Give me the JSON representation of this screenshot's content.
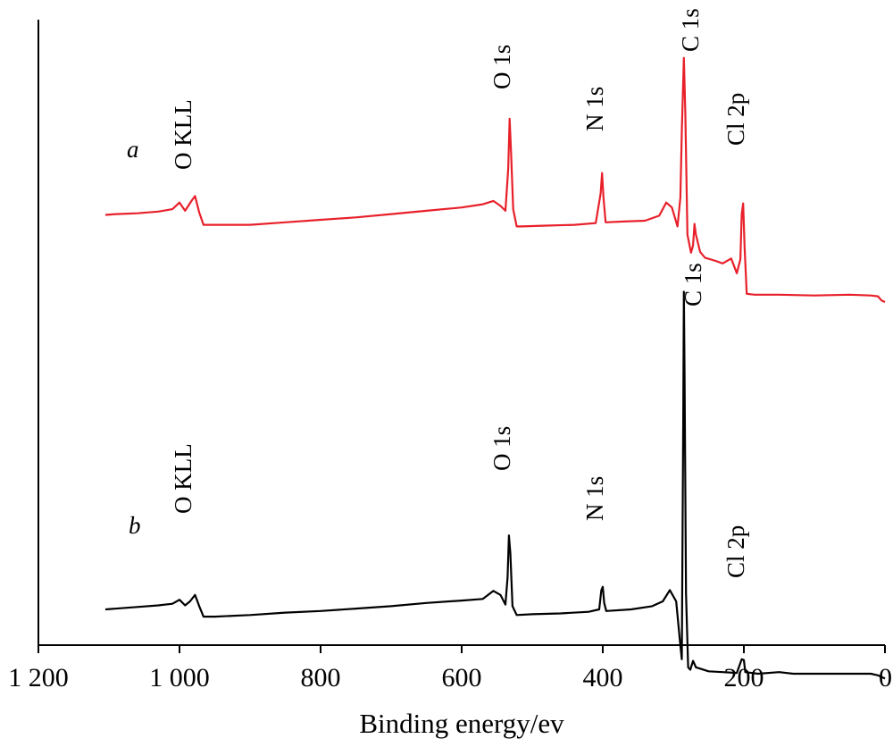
{
  "chart_data": {
    "type": "line",
    "title": "",
    "xlabel": "Binding energy/ev",
    "ylabel": "",
    "x_reversed": true,
    "xlim": [
      1200,
      0
    ],
    "y_axis_ticks": false,
    "grid": false,
    "legend": "none",
    "x_ticks": [
      {
        "value": 1200,
        "label": "1 200"
      },
      {
        "value": 1000,
        "label": "1 000"
      },
      {
        "value": 800,
        "label": "800"
      },
      {
        "value": 600,
        "label": "600"
      },
      {
        "value": 400,
        "label": "400"
      },
      {
        "value": 200,
        "label": "200"
      },
      {
        "value": 0,
        "label": "0"
      }
    ],
    "series": [
      {
        "name": "a",
        "color": "#e8202a",
        "annotations": [
          {
            "label": "O KLL",
            "x": 978
          },
          {
            "label": "O 1s",
            "x": 532
          },
          {
            "label": "N 1s",
            "x": 400
          },
          {
            "label": "C 1s",
            "x": 285
          },
          {
            "label": "Cl 2p",
            "x": 200
          }
        ],
        "points": [
          [
            1105,
            0.19
          ],
          [
            1090,
            0.2
          ],
          [
            1060,
            0.21
          ],
          [
            1030,
            0.23
          ],
          [
            1010,
            0.26
          ],
          [
            1000,
            0.34
          ],
          [
            992,
            0.24
          ],
          [
            983,
            0.36
          ],
          [
            978,
            0.42
          ],
          [
            972,
            0.22
          ],
          [
            966,
            0.07
          ],
          [
            950,
            0.07
          ],
          [
            900,
            0.07
          ],
          [
            850,
            0.1
          ],
          [
            800,
            0.13
          ],
          [
            750,
            0.16
          ],
          [
            700,
            0.2
          ],
          [
            650,
            0.24
          ],
          [
            600,
            0.28
          ],
          [
            570,
            0.32
          ],
          [
            555,
            0.36
          ],
          [
            545,
            0.3
          ],
          [
            538,
            0.24
          ],
          [
            534,
            0.75
          ],
          [
            532,
            1.36
          ],
          [
            530,
            0.95
          ],
          [
            527,
            0.26
          ],
          [
            522,
            0.05
          ],
          [
            515,
            0.05
          ],
          [
            480,
            0.06
          ],
          [
            440,
            0.07
          ],
          [
            410,
            0.09
          ],
          [
            403,
            0.45
          ],
          [
            401,
            0.7
          ],
          [
            399,
            0.4
          ],
          [
            396,
            0.1
          ],
          [
            370,
            0.11
          ],
          [
            340,
            0.12
          ],
          [
            320,
            0.18
          ],
          [
            310,
            0.34
          ],
          [
            302,
            0.28
          ],
          [
            294,
            0.05
          ],
          [
            290,
            0.4
          ],
          [
            288,
            1.2
          ],
          [
            285,
            2.1
          ],
          [
            283,
            1.45
          ],
          [
            280,
            -0.05
          ],
          [
            275,
            -0.27
          ],
          [
            272,
            -0.18
          ],
          [
            270,
            0.08
          ],
          [
            268,
            -0.05
          ],
          [
            262,
            -0.26
          ],
          [
            255,
            -0.33
          ],
          [
            240,
            -0.37
          ],
          [
            230,
            -0.4
          ],
          [
            218,
            -0.34
          ],
          [
            210,
            -0.52
          ],
          [
            205,
            -0.35
          ],
          [
            203,
            0.2
          ],
          [
            201,
            0.33
          ],
          [
            199,
            -0.2
          ],
          [
            196,
            -0.77
          ],
          [
            185,
            -0.78
          ],
          [
            150,
            -0.78
          ],
          [
            100,
            -0.79
          ],
          [
            50,
            -0.78
          ],
          [
            20,
            -0.79
          ],
          [
            10,
            -0.8
          ],
          [
            5,
            -0.85
          ],
          [
            0,
            -0.87
          ]
        ]
      },
      {
        "name": "b",
        "color": "#000000",
        "annotations": [
          {
            "label": "O KLL",
            "x": 978
          },
          {
            "label": "O 1s",
            "x": 532
          },
          {
            "label": "N 1s",
            "x": 400
          },
          {
            "label": "C 1s",
            "x": 285
          },
          {
            "label": "Cl 2p",
            "x": 200
          }
        ],
        "points": [
          [
            1105,
            0.0
          ],
          [
            1060,
            0.03
          ],
          [
            1030,
            0.05
          ],
          [
            1010,
            0.07
          ],
          [
            1000,
            0.12
          ],
          [
            992,
            0.05
          ],
          [
            985,
            0.1
          ],
          [
            978,
            0.18
          ],
          [
            972,
            0.04
          ],
          [
            966,
            -0.09
          ],
          [
            950,
            -0.09
          ],
          [
            900,
            -0.07
          ],
          [
            850,
            -0.04
          ],
          [
            800,
            -0.02
          ],
          [
            750,
            0.01
          ],
          [
            700,
            0.04
          ],
          [
            650,
            0.08
          ],
          [
            600,
            0.11
          ],
          [
            570,
            0.13
          ],
          [
            555,
            0.23
          ],
          [
            545,
            0.18
          ],
          [
            538,
            0.06
          ],
          [
            535,
            0.4
          ],
          [
            533,
            0.92
          ],
          [
            531,
            0.7
          ],
          [
            528,
            0.04
          ],
          [
            522,
            -0.07
          ],
          [
            500,
            -0.06
          ],
          [
            460,
            -0.05
          ],
          [
            420,
            -0.03
          ],
          [
            405,
            0.0
          ],
          [
            402,
            0.24
          ],
          [
            400,
            0.28
          ],
          [
            398,
            0.08
          ],
          [
            395,
            -0.02
          ],
          [
            360,
            0.0
          ],
          [
            330,
            0.04
          ],
          [
            315,
            0.1
          ],
          [
            305,
            0.24
          ],
          [
            296,
            0.1
          ],
          [
            290,
            -0.45
          ],
          [
            288,
            -0.62
          ],
          [
            286,
            2.35
          ],
          [
            285,
            3.95
          ],
          [
            284,
            2.9
          ],
          [
            282,
            0.2
          ],
          [
            279,
            -0.72
          ],
          [
            276,
            -0.75
          ],
          [
            272,
            -0.64
          ],
          [
            268,
            -0.72
          ],
          [
            250,
            -0.77
          ],
          [
            230,
            -0.78
          ],
          [
            210,
            -0.79
          ],
          [
            203,
            -0.62
          ],
          [
            200,
            -0.63
          ],
          [
            198,
            -0.78
          ],
          [
            180,
            -0.8
          ],
          [
            150,
            -0.78
          ],
          [
            130,
            -0.8
          ],
          [
            100,
            -0.8
          ],
          [
            60,
            -0.8
          ],
          [
            20,
            -0.8
          ],
          [
            10,
            -0.82
          ],
          [
            5,
            -0.84
          ],
          [
            0,
            -0.86
          ]
        ]
      }
    ]
  }
}
